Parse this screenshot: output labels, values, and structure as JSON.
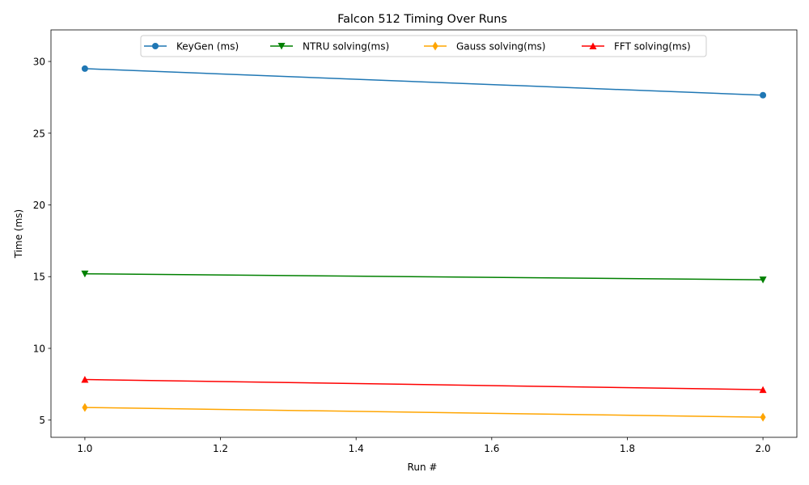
{
  "chart_data": {
    "type": "line",
    "title": "Falcon 512 Timing Over Runs",
    "xlabel": "Run #",
    "ylabel": "Time (ms)",
    "x": [
      1.0,
      2.0
    ],
    "xlim": [
      0.95,
      2.05
    ],
    "ylim": [
      3.8,
      32.2
    ],
    "xticks": [
      1.0,
      1.2,
      1.4,
      1.6,
      1.8,
      2.0
    ],
    "xtick_labels": [
      "1.0",
      "1.2",
      "1.4",
      "1.6",
      "1.8",
      "2.0"
    ],
    "yticks": [
      5,
      10,
      15,
      20,
      25,
      30
    ],
    "ytick_labels": [
      "5",
      "10",
      "15",
      "20",
      "25",
      "30"
    ],
    "grid": false,
    "legend_position": "top-center",
    "series": [
      {
        "name": "KeyGen (ms)",
        "values": [
          29.5,
          27.65
        ],
        "color": "#1f77b4",
        "marker": "circle"
      },
      {
        "name": "NTRU solving(ms)",
        "values": [
          15.2,
          14.78
        ],
        "color": "#008000",
        "marker": "triangle-down"
      },
      {
        "name": "Gauss solving(ms)",
        "values": [
          5.88,
          5.2
        ],
        "color": "#ffa500",
        "marker": "thin-diamond"
      },
      {
        "name": "FFT solving(ms)",
        "values": [
          7.83,
          7.12
        ],
        "color": "#ff0000",
        "marker": "triangle-up"
      }
    ]
  }
}
